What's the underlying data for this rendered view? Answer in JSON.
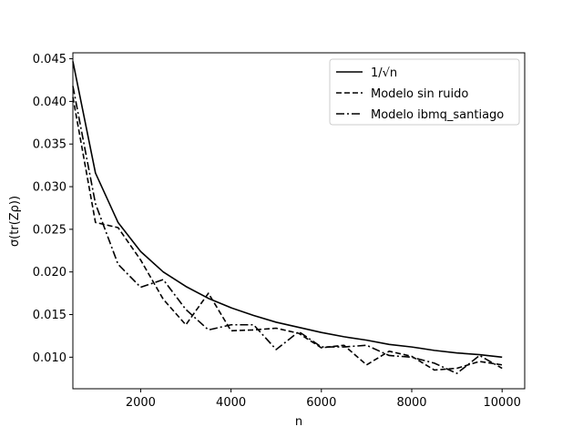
{
  "chart_data": {
    "type": "line",
    "xlabel": "n",
    "ylabel": "σ(tr(Zρ))",
    "xlim": [
      500,
      10500
    ],
    "ylim": [
      0.0063,
      0.0457
    ],
    "xticks": [
      2000,
      4000,
      6000,
      8000,
      10000
    ],
    "xtick_labels": [
      "2000",
      "4000",
      "6000",
      "8000",
      "10000"
    ],
    "yticks": [
      0.01,
      0.015,
      0.02,
      0.025,
      0.03,
      0.035,
      0.04,
      0.045
    ],
    "ytick_labels": [
      "0.010",
      "0.015",
      "0.020",
      "0.025",
      "0.030",
      "0.035",
      "0.040",
      "0.045"
    ],
    "grid": false,
    "legend_position": "top-right",
    "x": [
      500,
      1000,
      1500,
      2000,
      2500,
      3000,
      3500,
      4000,
      4500,
      5000,
      5500,
      6000,
      6500,
      7000,
      7500,
      8000,
      8500,
      9000,
      9500,
      10000
    ],
    "series": [
      {
        "name": "1/√n",
        "style": "solid",
        "values": [
          0.0447,
          0.0316,
          0.0258,
          0.0224,
          0.02,
          0.0183,
          0.0169,
          0.0158,
          0.0149,
          0.0141,
          0.0135,
          0.0129,
          0.0124,
          0.012,
          0.0115,
          0.0112,
          0.0108,
          0.0105,
          0.0103,
          0.01
        ]
      },
      {
        "name": "Modelo sin ruido",
        "style": "dashed",
        "values": [
          0.0405,
          0.0258,
          0.0252,
          0.0214,
          0.0168,
          0.0138,
          0.0175,
          0.0131,
          0.0132,
          0.0134,
          0.0128,
          0.0111,
          0.0114,
          0.0091,
          0.0107,
          0.0101,
          0.0085,
          0.0087,
          0.0095,
          0.0091
        ]
      },
      {
        "name": "Modelo ibmq_santiago",
        "style": "dashdot",
        "values": [
          0.0418,
          0.028,
          0.0209,
          0.0182,
          0.0191,
          0.0156,
          0.0132,
          0.0138,
          0.0138,
          0.0109,
          0.013,
          0.0112,
          0.0112,
          0.0114,
          0.0102,
          0.01,
          0.0093,
          0.0081,
          0.0102,
          0.0087
        ]
      }
    ],
    "colors": {
      "line": "#000000",
      "axes": "#000000",
      "background": "#ffffff"
    }
  }
}
